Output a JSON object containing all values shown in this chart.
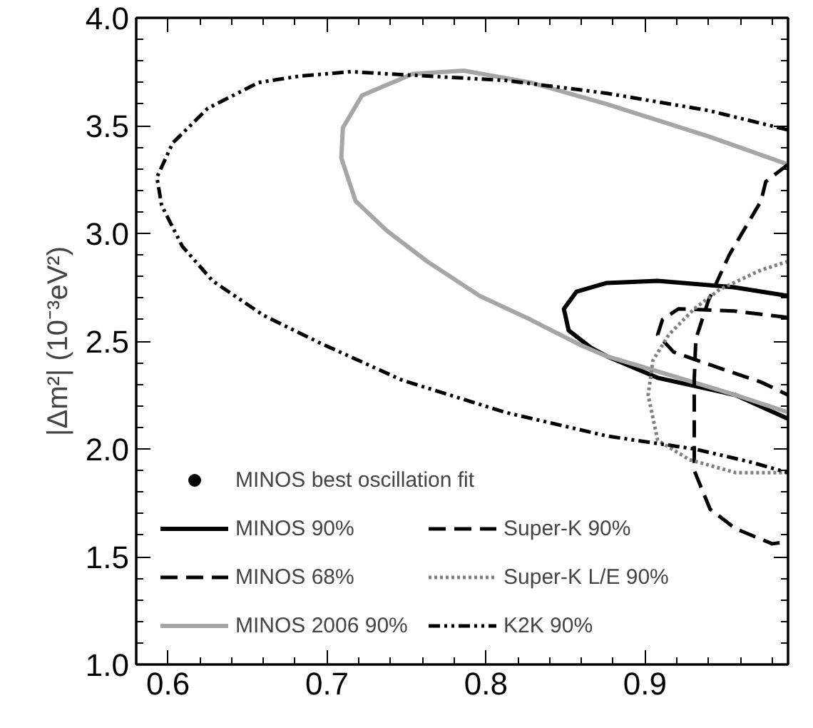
{
  "chart_data": {
    "type": "line",
    "ylabel": "|Δm²| (10⁻³eV²)",
    "xlim": [
      0.58,
      0.99
    ],
    "ylim": [
      1.0,
      4.0
    ],
    "xticks": [
      0.6,
      0.7,
      0.8,
      0.9
    ],
    "yticks": [
      {
        "value": 1.0,
        "label": "1.0"
      },
      1.5,
      {
        "value": 2.0,
        "label": "2.0"
      },
      2.5,
      {
        "value": 3.0,
        "label": "3.0"
      },
      3.5,
      {
        "value": 4.0,
        "label": "4.0"
      }
    ],
    "grid": false,
    "legend": "bottom left",
    "series": [
      {
        "name": "MINOS best oscillation fit",
        "type": "scatter",
        "marker": "circle",
        "color": "#000000"
      },
      {
        "name": "MINOS 90%",
        "color": "#000000",
        "line_style": "solid",
        "x": [
          0.99,
          0.956,
          0.908,
          0.876,
          0.857,
          0.849,
          0.852,
          0.866,
          0.876,
          0.908,
          0.957,
          0.99
        ],
        "values": [
          2.71,
          2.75,
          2.78,
          2.77,
          2.73,
          2.65,
          2.55,
          2.47,
          2.43,
          2.33,
          2.25,
          2.14
        ]
      },
      {
        "name": "MINOS 68%",
        "color": "#000000",
        "line_style": "dashed",
        "x": [
          0.99,
          0.956,
          0.921,
          0.911,
          0.908,
          0.918,
          0.941,
          0.973,
          0.99
        ],
        "values": [
          2.61,
          2.64,
          2.65,
          2.6,
          2.53,
          2.45,
          2.39,
          2.31,
          2.25
        ]
      },
      {
        "name": "MINOS 2006 90%",
        "color": "#a6a6a6",
        "line_style": "solid",
        "x": [
          0.99,
          0.94,
          0.876,
          0.828,
          0.786,
          0.754,
          0.722,
          0.71,
          0.709,
          0.718,
          0.738,
          0.763,
          0.796,
          0.828,
          0.86,
          0.876,
          0.908,
          0.957,
          0.99
        ],
        "values": [
          3.32,
          3.45,
          3.6,
          3.7,
          3.755,
          3.74,
          3.64,
          3.49,
          3.35,
          3.15,
          3.01,
          2.87,
          2.71,
          2.6,
          2.48,
          2.43,
          2.36,
          2.25,
          2.17
        ]
      },
      {
        "name": "Super-K 90%",
        "color": "#000000",
        "line_style": "dashed",
        "x": [
          0.99,
          0.976,
          0.973,
          0.953,
          0.94,
          0.932,
          0.931,
          0.931,
          0.941,
          0.957,
          0.98,
          0.99
        ],
        "values": [
          3.32,
          3.24,
          3.15,
          2.9,
          2.69,
          2.51,
          2.32,
          1.9,
          1.72,
          1.63,
          1.56,
          1.57
        ]
      },
      {
        "name": "Super-K L/E 90%",
        "color": "#808080",
        "line_style": "dotted",
        "x": [
          0.99,
          0.973,
          0.947,
          0.931,
          0.915,
          0.905,
          0.902,
          0.908,
          0.928,
          0.957,
          0.99
        ],
        "values": [
          2.87,
          2.83,
          2.74,
          2.65,
          2.53,
          2.41,
          2.25,
          2.04,
          1.95,
          1.89,
          1.89
        ]
      },
      {
        "name": "K2K 90%",
        "color": "#000000",
        "line_style": "dashdot",
        "x": [
          0.99,
          0.94,
          0.876,
          0.812,
          0.763,
          0.715,
          0.683,
          0.657,
          0.625,
          0.603,
          0.593,
          0.596,
          0.609,
          0.628,
          0.66,
          0.696,
          0.747,
          0.812,
          0.876,
          0.931,
          0.966,
          0.99
        ],
        "values": [
          3.48,
          3.57,
          3.65,
          3.71,
          3.73,
          3.75,
          3.73,
          3.7,
          3.58,
          3.42,
          3.26,
          3.13,
          2.94,
          2.78,
          2.62,
          2.49,
          2.32,
          2.17,
          2.06,
          2.0,
          1.94,
          1.89
        ]
      }
    ]
  }
}
